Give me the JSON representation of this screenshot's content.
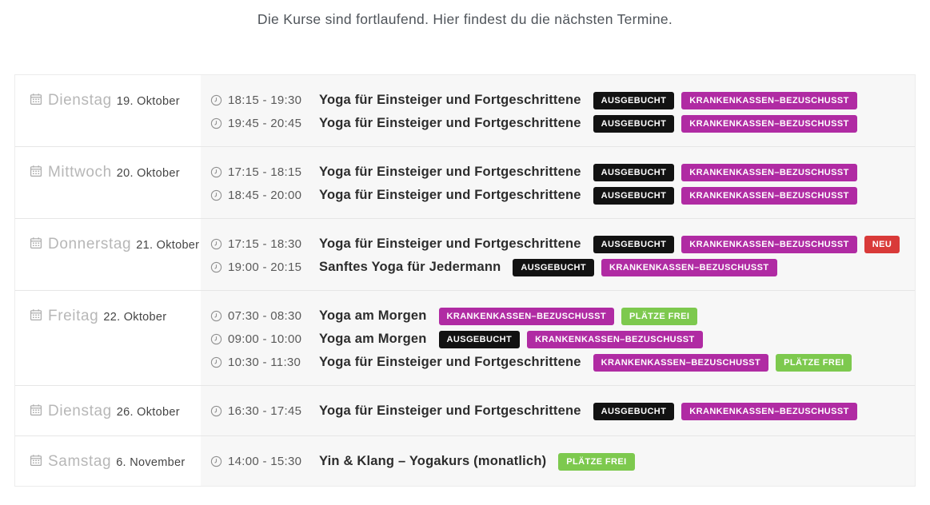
{
  "header": {
    "intro": "Die Kurse sind fortlaufend. Hier findest du die nächsten Termine."
  },
  "badge_colors": {
    "sold_out": "#121212",
    "insurance": "#b02ba3",
    "new": "#d93a39",
    "free": "#7dc94e"
  },
  "schedule": {
    "rows": [
      {
        "day": "Dienstag",
        "date": "19. Oktober",
        "sessions": [
          {
            "time": "18:15 - 19:30",
            "title": "Yoga für Einsteiger und Fortgeschrittene",
            "badges": [
              {
                "label": "AUSGEBUCHT",
                "type": "sold_out"
              },
              {
                "label": "KRANKENKASSEN–BEZUSCHUSST",
                "type": "insurance"
              }
            ]
          },
          {
            "time": "19:45 - 20:45",
            "title": "Yoga für Einsteiger und Fortgeschrittene",
            "badges": [
              {
                "label": "AUSGEBUCHT",
                "type": "sold_out"
              },
              {
                "label": "KRANKENKASSEN–BEZUSCHUSST",
                "type": "insurance"
              }
            ]
          }
        ]
      },
      {
        "day": "Mittwoch",
        "date": "20. Oktober",
        "sessions": [
          {
            "time": "17:15 - 18:15",
            "title": "Yoga für Einsteiger und Fortgeschrittene",
            "badges": [
              {
                "label": "AUSGEBUCHT",
                "type": "sold_out"
              },
              {
                "label": "KRANKENKASSEN–BEZUSCHUSST",
                "type": "insurance"
              }
            ]
          },
          {
            "time": "18:45 - 20:00",
            "title": "Yoga für Einsteiger und Fortgeschrittene",
            "badges": [
              {
                "label": "AUSGEBUCHT",
                "type": "sold_out"
              },
              {
                "label": "KRANKENKASSEN–BEZUSCHUSST",
                "type": "insurance"
              }
            ]
          }
        ]
      },
      {
        "day": "Donnerstag",
        "date": "21. Oktober",
        "sessions": [
          {
            "time": "17:15 - 18:30",
            "title": "Yoga für Einsteiger und Fortgeschrittene",
            "badges": [
              {
                "label": "AUSGEBUCHT",
                "type": "sold_out"
              },
              {
                "label": "KRANKENKASSEN–BEZUSCHUSST",
                "type": "insurance"
              },
              {
                "label": "NEU",
                "type": "new"
              }
            ]
          },
          {
            "time": "19:00 - 20:15",
            "title": "Sanftes Yoga für Jedermann",
            "badges": [
              {
                "label": "AUSGEBUCHT",
                "type": "sold_out"
              },
              {
                "label": "KRANKENKASSEN–BEZUSCHUSST",
                "type": "insurance"
              }
            ]
          }
        ]
      },
      {
        "day": "Freitag",
        "date": "22. Oktober",
        "sessions": [
          {
            "time": "07:30 - 08:30",
            "title": "Yoga am Morgen",
            "badges": [
              {
                "label": "KRANKENKASSEN–BEZUSCHUSST",
                "type": "insurance"
              },
              {
                "label": "PLÄTZE FREI",
                "type": "free"
              }
            ]
          },
          {
            "time": "09:00 - 10:00",
            "title": "Yoga am Morgen",
            "badges": [
              {
                "label": "AUSGEBUCHT",
                "type": "sold_out"
              },
              {
                "label": "KRANKENKASSEN–BEZUSCHUSST",
                "type": "insurance"
              }
            ]
          },
          {
            "time": "10:30 - 11:30",
            "title": "Yoga für Einsteiger und Fortgeschrittene",
            "badges": [
              {
                "label": "KRANKENKASSEN–BEZUSCHUSST",
                "type": "insurance"
              },
              {
                "label": "PLÄTZE FREI",
                "type": "free"
              }
            ]
          }
        ]
      },
      {
        "day": "Dienstag",
        "date": "26. Oktober",
        "sessions": [
          {
            "time": "16:30 - 17:45",
            "title": "Yoga für Einsteiger und Fortgeschrittene",
            "badges": [
              {
                "label": "AUSGEBUCHT",
                "type": "sold_out"
              },
              {
                "label": "KRANKENKASSEN–BEZUSCHUSST",
                "type": "insurance"
              }
            ]
          }
        ]
      },
      {
        "day": "Samstag",
        "date": "6. November",
        "sessions": [
          {
            "time": "14:00 - 15:30",
            "title": "Yin & Klang – Yogakurs (monatlich)",
            "badges": [
              {
                "label": "PLÄTZE FREI",
                "type": "free"
              }
            ]
          }
        ]
      }
    ]
  }
}
